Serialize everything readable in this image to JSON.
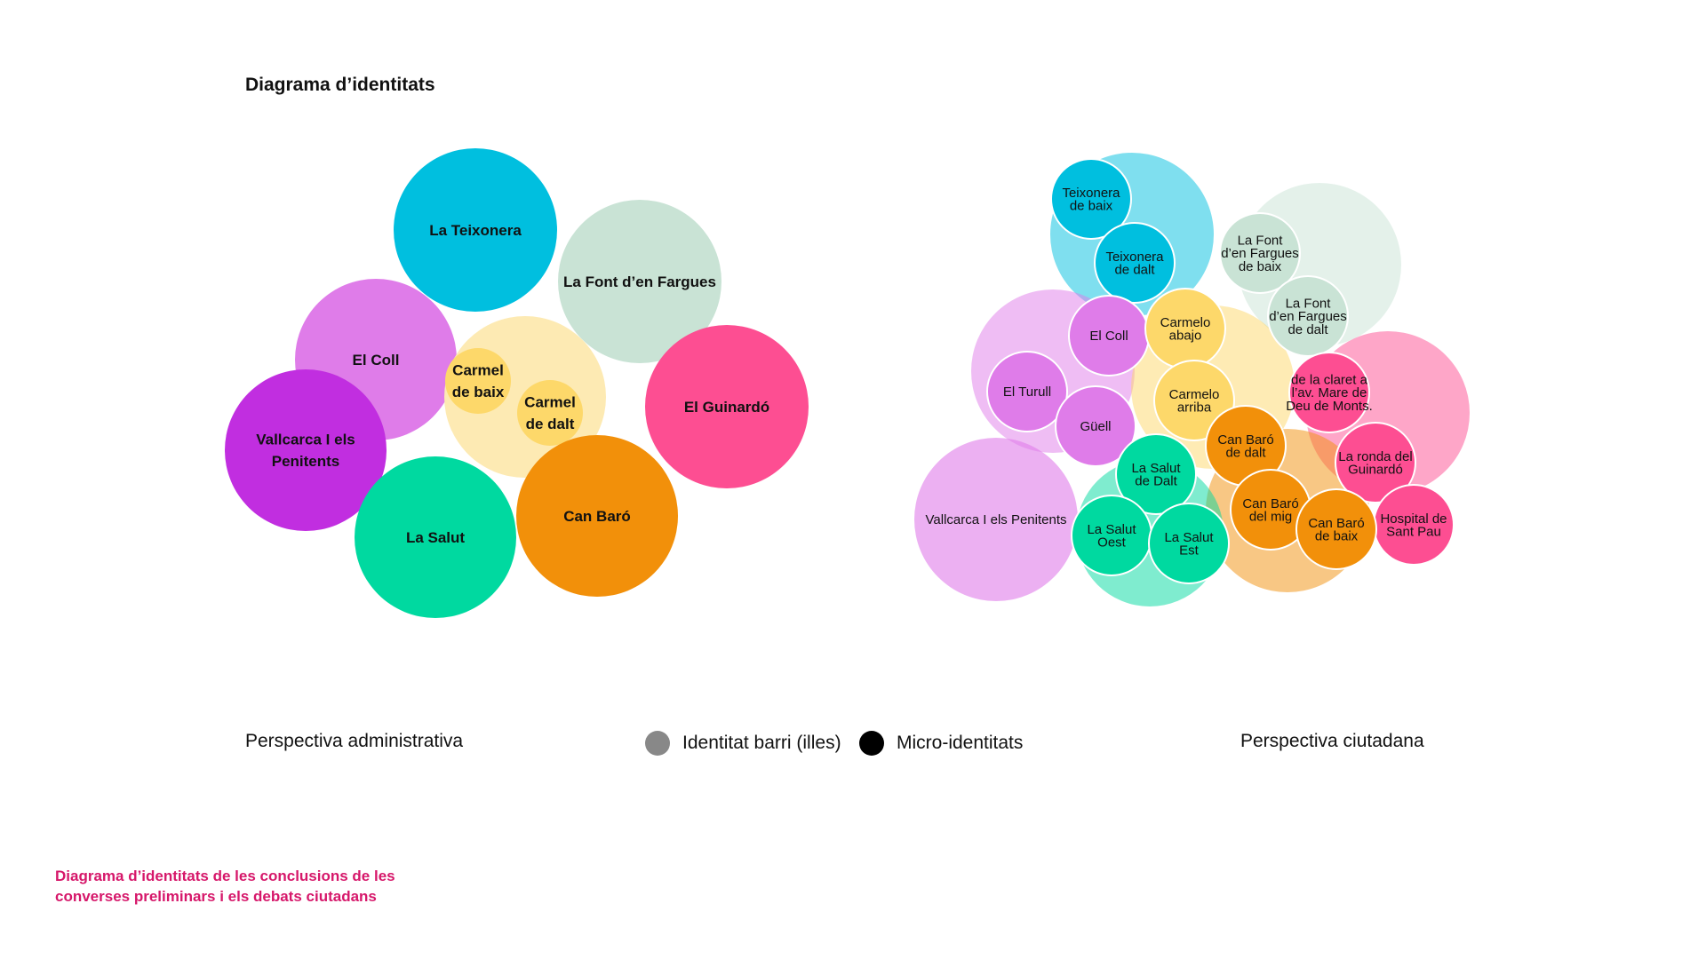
{
  "title": "Diagrama d’identitats",
  "legend": {
    "perspective_left": "Perspectiva administrativa",
    "perspective_right": "Perspectiva ciutadana",
    "identitat_barri": "Identitat barri (illes)",
    "micro_identitats": "Micro-identitats",
    "identitat_barri_color": "#888888",
    "micro_identitats_color": "#000000"
  },
  "caption": {
    "line1": "Diagrama d’identitats de les conclusions de les",
    "line2": "converses preliminars i els debats ciutadans"
  },
  "colors": {
    "teixonera": "#00bfdf",
    "font_fargues": "#c9e3d5",
    "guinardo": "#fd4e92",
    "coll": "#df7ce9",
    "vallcarca": "#c12ee0",
    "carmel": "#fdd86a",
    "carmel_light": "#fdeab3",
    "salut": "#00d9a0",
    "can_baro": "#f2900a",
    "caption": "#d6176a"
  },
  "diagrams": [
    {
      "name": "administrativa",
      "bubbles": [
        {
          "label": "La Teixonera",
          "color": "#00bfdf",
          "kind": "barri"
        },
        {
          "label": "La Font d’en Fargues",
          "color": "#c9e3d5",
          "kind": "barri"
        },
        {
          "label": "El Guinardó",
          "color": "#fd4e92",
          "kind": "barri"
        },
        {
          "label": "El Coll",
          "color": "#df7ce9",
          "kind": "barri"
        },
        {
          "label": "Vallcarca I els Penitents",
          "color": "#c12ee0",
          "kind": "barri"
        },
        {
          "label": "",
          "color": "#fdeab3",
          "kind": "barri"
        },
        {
          "label": "Carmel de baix",
          "color": "#fdd86a",
          "kind": "micro"
        },
        {
          "label": "Carmel de dalt",
          "color": "#fdd86a",
          "kind": "micro"
        },
        {
          "label": "La Salut",
          "color": "#00d9a0",
          "kind": "barri"
        },
        {
          "label": "Can Baró",
          "color": "#f2900a",
          "kind": "barri"
        }
      ]
    },
    {
      "name": "ciutadana",
      "bubbles": [
        {
          "label": "",
          "color": "#00bfdf",
          "kind": "barri"
        },
        {
          "label": "",
          "color": "#c9e3d5",
          "kind": "barri"
        },
        {
          "label": "",
          "color": "#fd4e92",
          "kind": "barri"
        },
        {
          "label": "",
          "color": "#df7ce9",
          "kind": "barri"
        },
        {
          "label": "",
          "color": "#fdd86a",
          "kind": "barri"
        },
        {
          "label": "",
          "color": "#f2900a",
          "kind": "barri"
        },
        {
          "label": "",
          "color": "#00d9a0",
          "kind": "barri"
        },
        {
          "label": "Vallcarca I els Penitents",
          "color": "#df7ce9",
          "kind": "micro"
        },
        {
          "label": "Teixonera de baix",
          "color": "#00bfdf",
          "kind": "micro"
        },
        {
          "label": "Teixonera de dalt",
          "color": "#00bfdf",
          "kind": "micro"
        },
        {
          "label": "La Font d’en Fargues de baix",
          "color": "#c9e3d5",
          "kind": "micro"
        },
        {
          "label": "La Font d’en Fargues de dalt",
          "color": "#c9e3d5",
          "kind": "micro"
        },
        {
          "label": "El Coll",
          "color": "#df7ce9",
          "kind": "micro"
        },
        {
          "label": "El Turull",
          "color": "#df7ce9",
          "kind": "micro"
        },
        {
          "label": "Güell",
          "color": "#df7ce9",
          "kind": "micro"
        },
        {
          "label": "Carmelo abajo",
          "color": "#fdd86a",
          "kind": "micro"
        },
        {
          "label": "Carmelo arriba",
          "color": "#fdd86a",
          "kind": "micro"
        },
        {
          "label": "de la claret a l’av. Mare de Deu de Monts.",
          "color": "#fd4e92",
          "kind": "micro"
        },
        {
          "label": "La ronda del Guinardó",
          "color": "#fd4e92",
          "kind": "micro"
        },
        {
          "label": "Hospital de Sant Pau",
          "color": "#fd4e92",
          "kind": "micro"
        },
        {
          "label": "Can Baró de dalt",
          "color": "#f2900a",
          "kind": "micro"
        },
        {
          "label": "Can Baró del mig",
          "color": "#f2900a",
          "kind": "micro"
        },
        {
          "label": "Can Baró de baix",
          "color": "#f2900a",
          "kind": "micro"
        },
        {
          "label": "La Salut de Dalt",
          "color": "#00d9a0",
          "kind": "micro"
        },
        {
          "label": "La Salut Oest",
          "color": "#00d9a0",
          "kind": "micro"
        },
        {
          "label": "La Salut Est",
          "color": "#00d9a0",
          "kind": "micro"
        }
      ]
    }
  ]
}
